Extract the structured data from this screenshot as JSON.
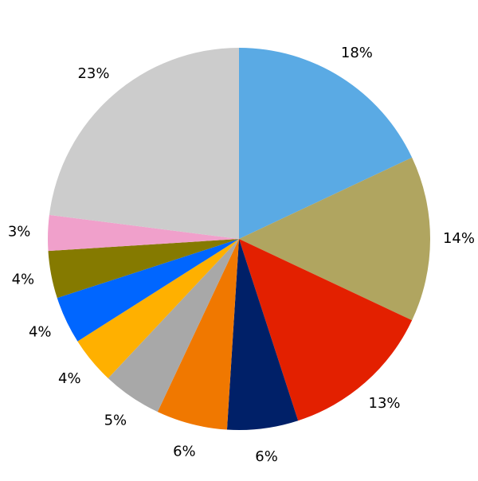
{
  "chart_data": {
    "type": "pie",
    "values": [
      18,
      14,
      13,
      6,
      6,
      5,
      4,
      4,
      4,
      3,
      23
    ],
    "value_labels": [
      "18%",
      "14%",
      "13%",
      "6%",
      "6%",
      "5%",
      "4%",
      "4%",
      "4%",
      "3%",
      "23%"
    ],
    "colors": [
      "#5aaae4",
      "#b0a560",
      "#e32000",
      "#002068",
      "#f07800",
      "#a8a8a8",
      "#ffb000",
      "#0066ff",
      "#857a00",
      "#f0a0cb",
      "#cccccc"
    ]
  }
}
